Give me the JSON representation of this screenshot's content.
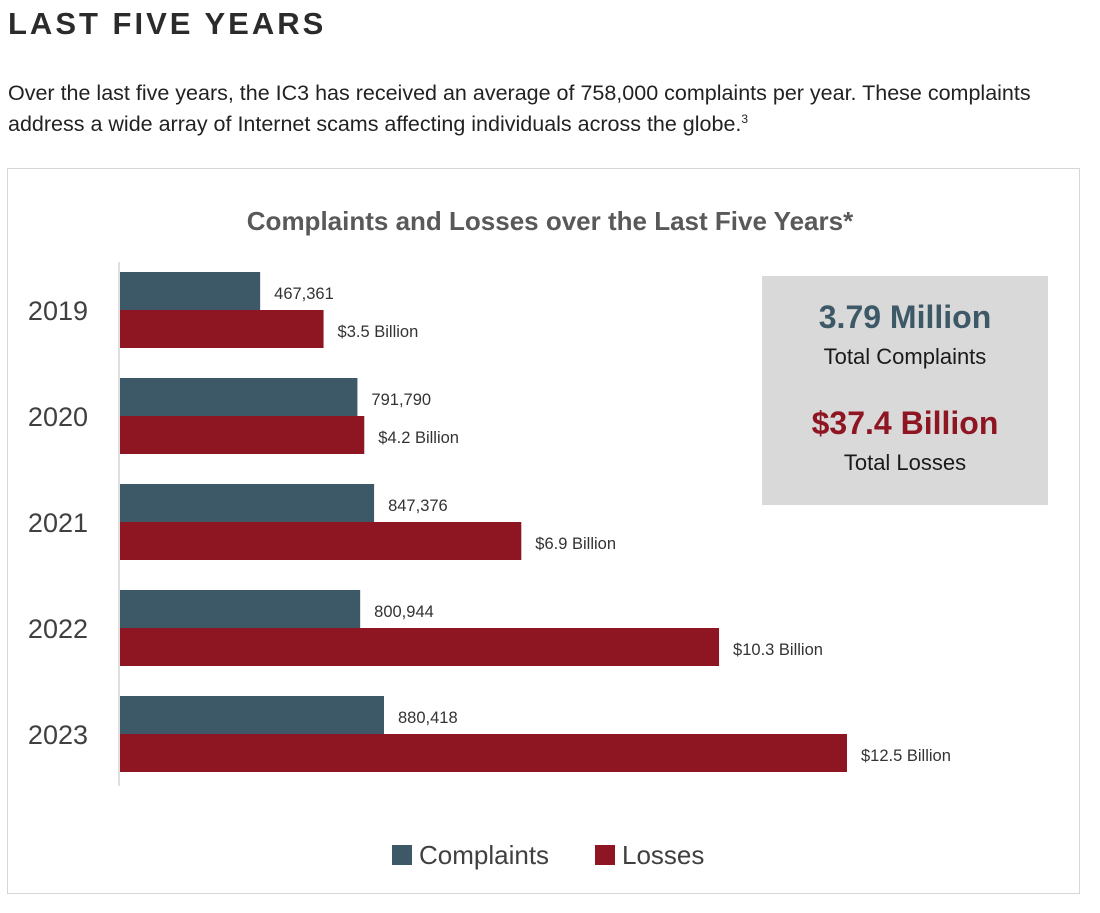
{
  "page": {
    "heading": "LAST FIVE YEARS",
    "intro": "Over the last five years, the IC3 has received an average of 758,000 complaints per year. These complaints address a wide array of Internet scams affecting individuals across the globe.",
    "footnote": "3"
  },
  "colors": {
    "complaints": "#3d5866",
    "losses": "#8e1522",
    "summary_box": "#d9d9d9"
  },
  "summary": {
    "complaints_value": "3.79 Million",
    "complaints_label": "Total Complaints",
    "losses_value": "$37.4 Billion",
    "losses_label": "Total Losses"
  },
  "chart_data": {
    "type": "bar",
    "orientation": "horizontal",
    "title": "Complaints and Losses over the Last Five Years*",
    "categories": [
      "2019",
      "2020",
      "2021",
      "2022",
      "2023"
    ],
    "series": [
      {
        "name": "Complaints",
        "values": [
          467361,
          791790,
          847376,
          800944,
          880418
        ],
        "labels": [
          "467,361",
          "791,790",
          "847,376",
          "800,944",
          "880,418"
        ]
      },
      {
        "name": "Losses",
        "unit": "Billion USD",
        "values": [
          3.5,
          4.2,
          6.9,
          10.3,
          12.5
        ],
        "labels": [
          "$3.5 Billion",
          "$4.2 Billion",
          "$6.9 Billion",
          "$10.3 Billion",
          "$12.5 Billion"
        ]
      }
    ],
    "legend": "bottom-center",
    "grid": false
  }
}
